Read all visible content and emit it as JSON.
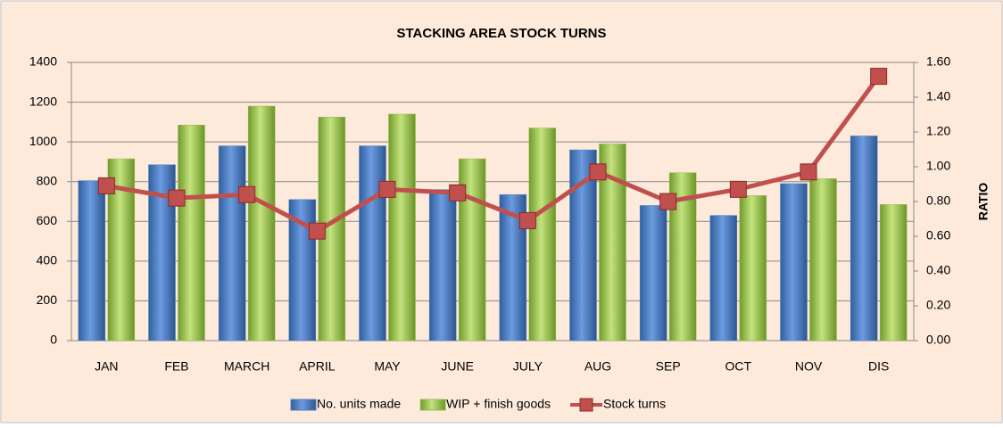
{
  "chart_data": {
    "type": "bar_line",
    "title": "STACKING AREA STOCK TURNS",
    "y2_label": "RATIO",
    "categories": [
      "JAN",
      "FEB",
      "MARCH",
      "APRIL",
      "MAY",
      "JUNE",
      "JULY",
      "AUG",
      "SEP",
      "OCT",
      "NOV",
      "DIS"
    ],
    "series": [
      {
        "name": "No. units made",
        "color": "#4f81bd",
        "type": "bar",
        "values": [
          805,
          885,
          980,
          710,
          980,
          760,
          735,
          960,
          680,
          630,
          790,
          1030
        ]
      },
      {
        "name": "WIP + finish goods",
        "color": "#9bbb59",
        "type": "bar",
        "values": [
          915,
          1085,
          1180,
          1125,
          1140,
          915,
          1070,
          990,
          845,
          730,
          815,
          685
        ]
      },
      {
        "name": "Stock turns",
        "color": "#c0504d",
        "type": "line",
        "axis": "y2",
        "values": [
          0.89,
          0.82,
          0.84,
          0.63,
          0.87,
          0.85,
          0.69,
          0.97,
          0.8,
          0.87,
          0.97,
          1.52
        ]
      }
    ],
    "ylim": [
      0,
      1400
    ],
    "yticks": [
      0,
      200,
      400,
      600,
      800,
      1000,
      1200,
      1400
    ],
    "y2lim": [
      0,
      1.6
    ],
    "y2ticks": [
      {
        "value": 0,
        "label": "0.00"
      },
      {
        "value": 0.2,
        "label": "0.20"
      },
      {
        "value": 0.4,
        "label": "0.40"
      },
      {
        "value": 0.6,
        "label": "0.60"
      },
      {
        "value": 0.8,
        "label": "0.80"
      },
      {
        "value": 1.0,
        "label": "1.00"
      },
      {
        "value": 1.2,
        "label": "1.20"
      },
      {
        "value": 1.4,
        "label": "1.40"
      },
      {
        "value": 1.6,
        "label": "1.60"
      }
    ],
    "grid": true,
    "legend": "bottom"
  }
}
